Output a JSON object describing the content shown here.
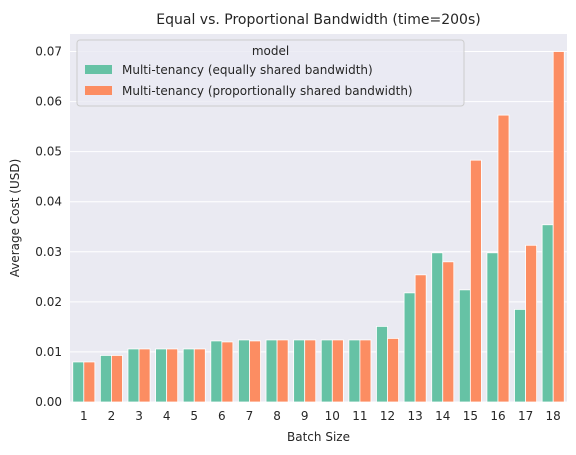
{
  "chart_data": {
    "type": "bar",
    "title": "Equal vs. Proportional Bandwidth (time=200s)",
    "xlabel": "Batch Size",
    "ylabel": "Average Cost (USD)",
    "ylim": [
      0,
      0.0735
    ],
    "yticks": [
      0.0,
      0.01,
      0.02,
      0.03,
      0.04,
      0.05,
      0.06,
      0.07
    ],
    "ytick_labels": [
      "0.00",
      "0.01",
      "0.02",
      "0.03",
      "0.04",
      "0.05",
      "0.06",
      "0.07"
    ],
    "grid": true,
    "legend": {
      "title": "model",
      "placement": "top-left"
    },
    "categories": [
      "1",
      "2",
      "3",
      "4",
      "5",
      "6",
      "7",
      "8",
      "9",
      "10",
      "11",
      "12",
      "13",
      "14",
      "15",
      "16",
      "17",
      "18"
    ],
    "series": [
      {
        "name": "Multi-tenancy (equally shared bandwidth)",
        "color": "#66c2a5",
        "values": [
          0.008,
          0.0093,
          0.0106,
          0.0106,
          0.0106,
          0.0122,
          0.0124,
          0.0124,
          0.0124,
          0.0124,
          0.0124,
          0.0151,
          0.0218,
          0.0298,
          0.0224,
          0.0298,
          0.0185,
          0.0354
        ]
      },
      {
        "name": "Multi-tenancy (proportionally shared bandwidth)",
        "color": "#fc8d62",
        "values": [
          0.008,
          0.0093,
          0.0106,
          0.0106,
          0.0106,
          0.012,
          0.0122,
          0.0124,
          0.0124,
          0.0124,
          0.0124,
          0.0127,
          0.0254,
          0.028,
          0.0483,
          0.0573,
          0.0313,
          0.07
        ]
      }
    ]
  }
}
